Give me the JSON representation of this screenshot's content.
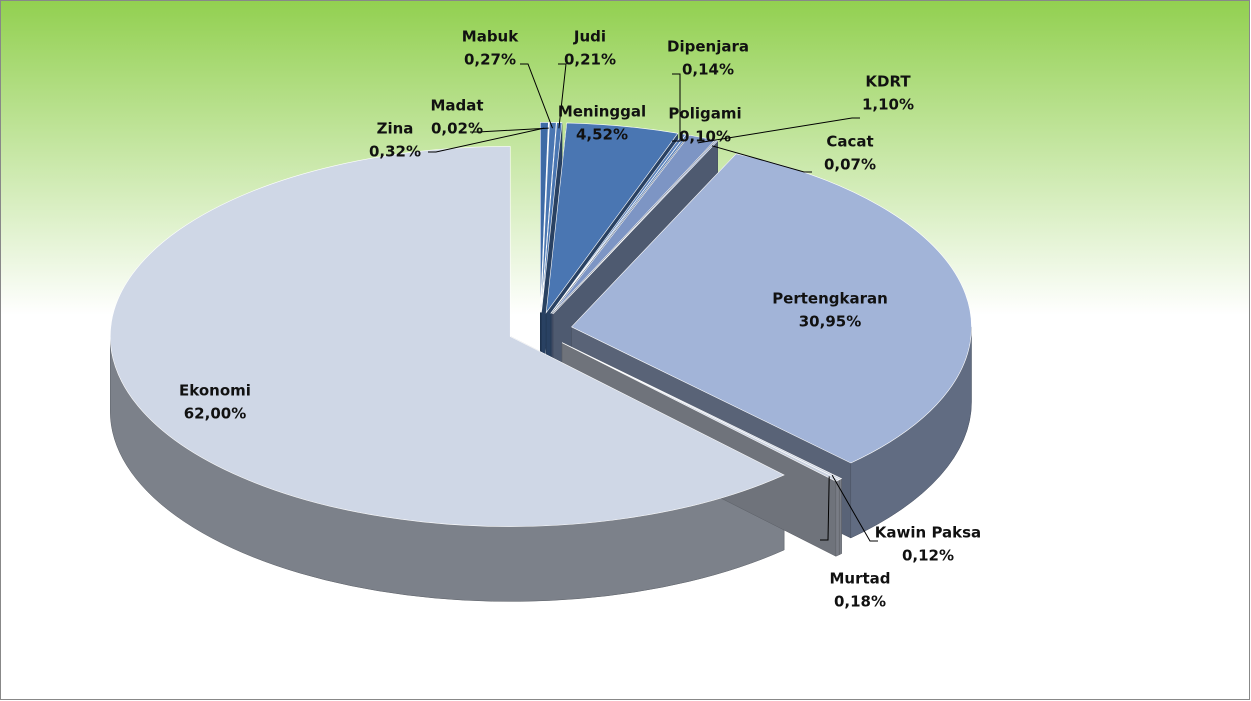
{
  "chart_data": {
    "type": "pie3d",
    "categories": [
      "Zina",
      "Madat",
      "Mabuk",
      "Judi",
      "Meninggal",
      "Dipenjara",
      "Poligami",
      "KDRT",
      "Cacat",
      "Pertengkaran",
      "Kawin Paksa",
      "Murtad",
      "Ekonomi"
    ],
    "values": [
      0.32,
      0.02,
      0.27,
      0.21,
      4.52,
      0.14,
      0.1,
      1.1,
      0.07,
      30.95,
      0.12,
      0.18,
      62.0
    ],
    "value_labels": [
      "0,32%",
      "0,02%",
      "0,27%",
      "0,21%",
      "4,52%",
      "0,14%",
      "0,10%",
      "1,10%",
      "0,07%",
      "30,95%",
      "0,12%",
      "0,18%",
      "62,00%"
    ],
    "colors": [
      "#3e6aa6",
      "#3e6aa6",
      "#4a76b2",
      "#4a76b2",
      "#4a76b2",
      "#5a82bb",
      "#5a82bb",
      "#7d95c4",
      "#8ea3cc",
      "#a2b4d8",
      "#c9d1e0",
      "#c9d1e0",
      "#cfd7e6"
    ]
  }
}
